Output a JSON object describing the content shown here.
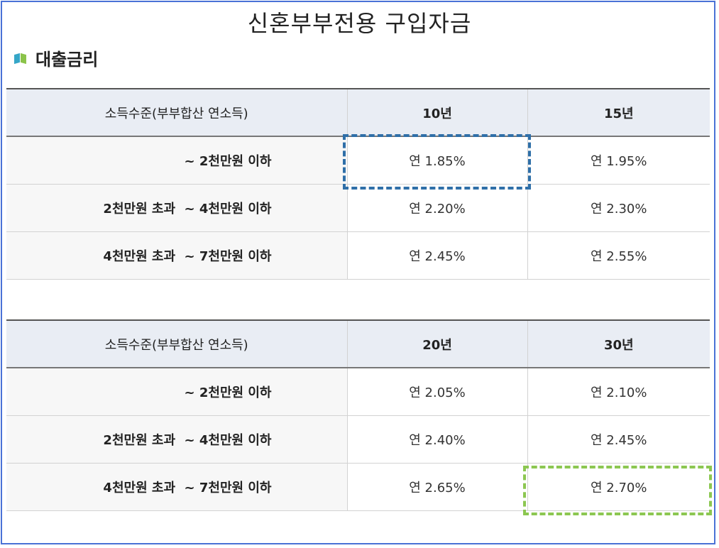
{
  "title": "신혼부부전용 구입자금",
  "section": {
    "icon": "book-icon",
    "label": "대출금리"
  },
  "tables": [
    {
      "header": {
        "income": "소득수준(부부합산 연소득)",
        "term_a": "10년",
        "term_b": "15년"
      },
      "rows": [
        {
          "income": "~ 2천만원 이하",
          "a": "연 1.85%",
          "b": "연 1.95%"
        },
        {
          "income": "2천만원 초과  ~ 4천만원 이하",
          "a": "연 2.20%",
          "b": "연 2.30%"
        },
        {
          "income": "4천만원 초과  ~ 7천만원 이하",
          "a": "연 2.45%",
          "b": "연 2.55%"
        }
      ]
    },
    {
      "header": {
        "income": "소득수준(부부합산 연소득)",
        "term_a": "20년",
        "term_b": "30년"
      },
      "rows": [
        {
          "income": "~ 2천만원 이하",
          "a": "연 2.05%",
          "b": "연 2.10%"
        },
        {
          "income": "2천만원 초과  ~ 4천만원 이하",
          "a": "연 2.40%",
          "b": "연 2.45%"
        },
        {
          "income": "4천만원 초과  ~ 7천만원 이하",
          "a": "연 2.65%",
          "b": "연 2.70%"
        }
      ]
    }
  ],
  "highlights": {
    "blue": "#2f6fa8",
    "green": "#8cc751"
  }
}
